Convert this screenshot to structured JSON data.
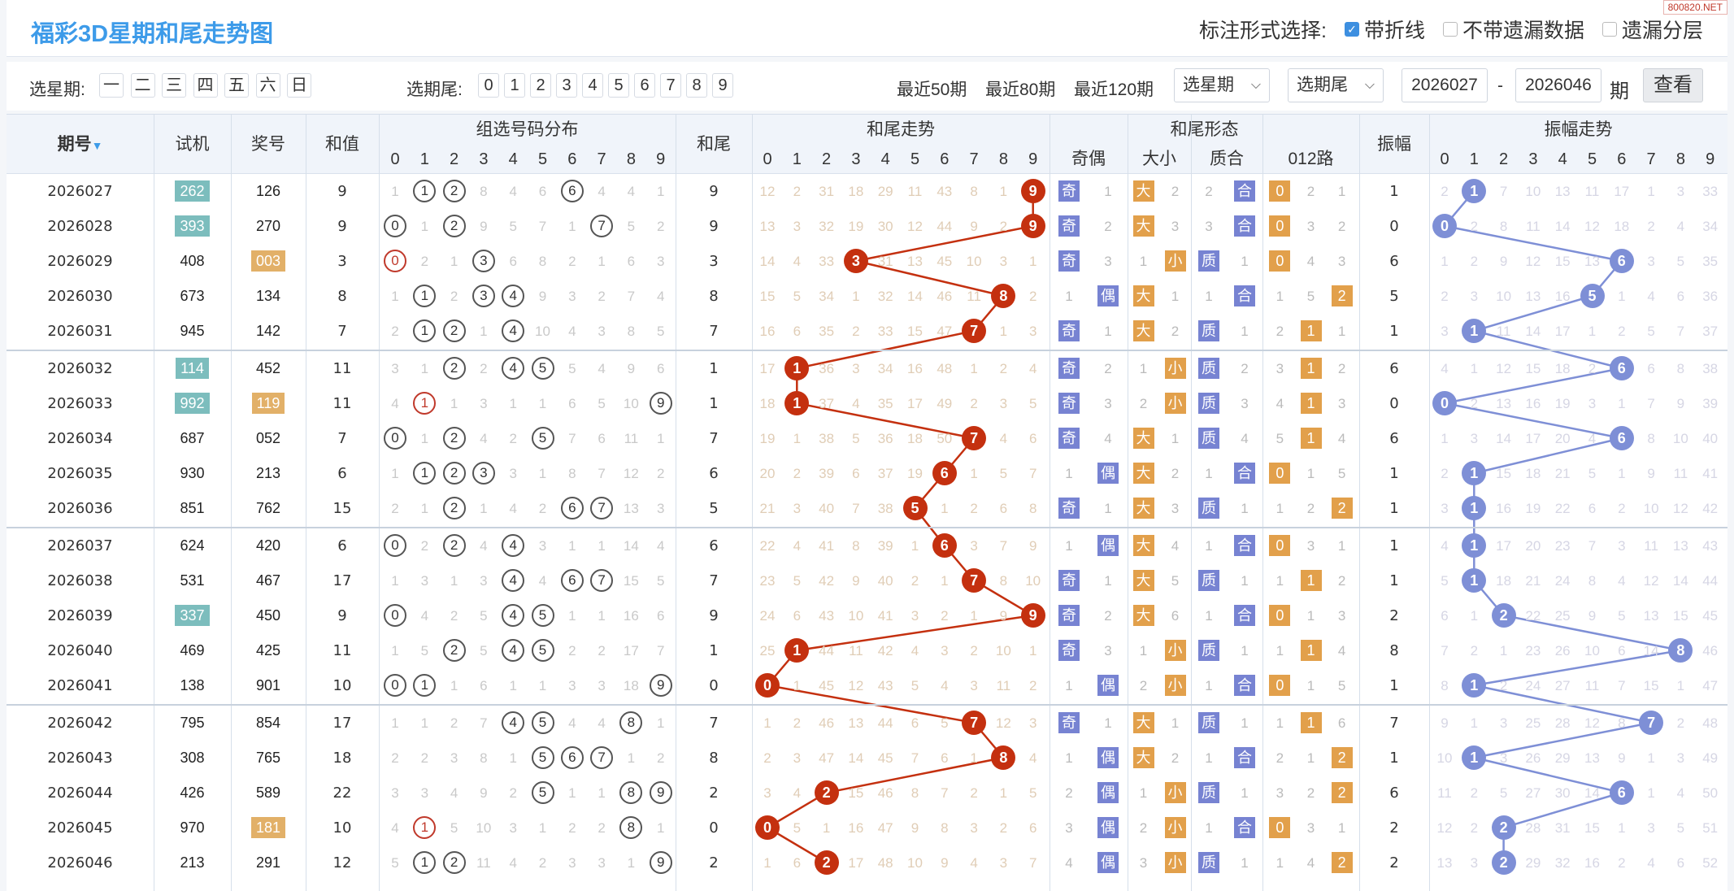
{
  "title": "福彩3D星期和尾走势图",
  "watermark": "800820.NET",
  "markopts": {
    "label": "标注形式选择:",
    "o1": "带折线",
    "o2": "不带遗漏数据",
    "o3": "遗漏分层"
  },
  "filter": {
    "week_label": "选星期:",
    "weekdays": [
      "一",
      "二",
      "三",
      "四",
      "五",
      "六",
      "日"
    ],
    "tail_label": "选期尾:",
    "tails": [
      "0",
      "1",
      "2",
      "3",
      "4",
      "5",
      "6",
      "7",
      "8",
      "9"
    ],
    "recent": [
      "最近50期",
      "最近80期",
      "最近120期"
    ],
    "sel_week": "选星期",
    "sel_tail": "选期尾",
    "from": "2026027",
    "dash": "-",
    "to": "2026046",
    "unit": "期",
    "search": "查看"
  },
  "headers": {
    "issue": "期号",
    "test": "试机",
    "prize": "奖号",
    "sum": "和值",
    "dist": "组选号码分布",
    "tail": "和尾",
    "trend": "和尾走势",
    "form": "和尾形态",
    "amp": "振幅",
    "amptrend": "振幅走势",
    "form_sub": [
      "奇偶",
      "大小",
      "质合",
      "012路"
    ],
    "digits": [
      "0",
      "1",
      "2",
      "3",
      "4",
      "5",
      "6",
      "7",
      "8",
      "9"
    ]
  },
  "colors": {
    "trend_ball": "#c4300f",
    "amp_ball": "#7e8fd6",
    "teal": "#7cbdbd",
    "gold": "#e2b068"
  },
  "rows": [
    {
      "issue": "2026027",
      "test": "262",
      "tb": "teal",
      "prize": "126",
      "pb": "",
      "sum": "9",
      "dist": [
        "1",
        "1",
        "2",
        "8",
        "4",
        "6",
        "6",
        "4",
        "4",
        "1"
      ],
      "hits": [
        1,
        2,
        6
      ],
      "hitx": [],
      "tail": "9",
      "trend": [
        "12",
        "2",
        "31",
        "18",
        "29",
        "11",
        "43",
        "8",
        "1",
        "9"
      ],
      "oe": [
        "奇",
        "1"
      ],
      "bs": [
        "大",
        "2"
      ],
      "pc": [
        "2",
        "合"
      ],
      "r012": [
        "0",
        "2",
        "1"
      ],
      "amp": "1",
      "at": [
        "2",
        "1",
        "7",
        "10",
        "13",
        "11",
        "17",
        "1",
        "3",
        "33"
      ]
    },
    {
      "issue": "2026028",
      "test": "393",
      "tb": "teal",
      "prize": "270",
      "pb": "",
      "sum": "9",
      "dist": [
        "0",
        "1",
        "2",
        "9",
        "5",
        "7",
        "1",
        "7",
        "5",
        "2"
      ],
      "hits": [
        0,
        2,
        7
      ],
      "hitx": [],
      "tail": "9",
      "trend": [
        "13",
        "3",
        "32",
        "19",
        "30",
        "12",
        "44",
        "9",
        "2",
        "9"
      ],
      "oe": [
        "奇",
        "2"
      ],
      "bs": [
        "大",
        "3"
      ],
      "pc": [
        "3",
        "合"
      ],
      "r012": [
        "0",
        "3",
        "2"
      ],
      "amp": "0",
      "at": [
        "0",
        "2",
        "8",
        "11",
        "14",
        "12",
        "18",
        "2",
        "4",
        "34"
      ]
    },
    {
      "issue": "2026029",
      "test": "408",
      "tb": "",
      "prize": "003",
      "pb": "gold",
      "sum": "3",
      "dist": [
        "0",
        "2",
        "1",
        "3",
        "6",
        "8",
        "2",
        "1",
        "6",
        "3"
      ],
      "hits": [
        3
      ],
      "hitx": [
        0
      ],
      "tail": "3",
      "trend": [
        "14",
        "4",
        "33",
        "3",
        "31",
        "13",
        "45",
        "10",
        "3",
        "1"
      ],
      "oe": [
        "奇",
        "3"
      ],
      "bs": [
        "1",
        "小"
      ],
      "pc": [
        "质",
        "1"
      ],
      "r012": [
        "0",
        "4",
        "3"
      ],
      "amp": "6",
      "at": [
        "1",
        "2",
        "9",
        "12",
        "15",
        "13",
        "6",
        "3",
        "5",
        "35"
      ]
    },
    {
      "issue": "2026030",
      "test": "673",
      "tb": "",
      "prize": "134",
      "pb": "",
      "sum": "8",
      "dist": [
        "1",
        "1",
        "2",
        "3",
        "4",
        "9",
        "3",
        "2",
        "7",
        "4"
      ],
      "hits": [
        1,
        3,
        4
      ],
      "hitx": [],
      "tail": "8",
      "trend": [
        "15",
        "5",
        "34",
        "1",
        "32",
        "14",
        "46",
        "11",
        "8",
        "2"
      ],
      "oe": [
        "1",
        "偶"
      ],
      "bs": [
        "大",
        "1"
      ],
      "pc": [
        "1",
        "合"
      ],
      "r012": [
        "1",
        "5",
        "2"
      ],
      "amp": "5",
      "at": [
        "2",
        "3",
        "10",
        "13",
        "16",
        "5",
        "1",
        "4",
        "6",
        "36"
      ]
    },
    {
      "issue": "2026031",
      "test": "945",
      "tb": "",
      "prize": "142",
      "pb": "",
      "sum": "7",
      "dist": [
        "2",
        "1",
        "2",
        "1",
        "4",
        "10",
        "4",
        "3",
        "8",
        "5"
      ],
      "hits": [
        1,
        2,
        4
      ],
      "hitx": [],
      "tail": "7",
      "trend": [
        "16",
        "6",
        "35",
        "2",
        "33",
        "15",
        "47",
        "7",
        "1",
        "3"
      ],
      "oe": [
        "奇",
        "1"
      ],
      "bs": [
        "大",
        "2"
      ],
      "pc": [
        "质",
        "1"
      ],
      "r012": [
        "2",
        "1",
        "1"
      ],
      "amp": "1",
      "at": [
        "3",
        "1",
        "11",
        "14",
        "17",
        "1",
        "2",
        "5",
        "7",
        "37"
      ]
    },
    {
      "issue": "2026032",
      "test": "114",
      "tb": "teal",
      "prize": "452",
      "pb": "",
      "sum": "11",
      "dist": [
        "3",
        "1",
        "2",
        "2",
        "4",
        "5",
        "5",
        "4",
        "9",
        "6"
      ],
      "hits": [
        2,
        4,
        5
      ],
      "hitx": [],
      "tail": "1",
      "trend": [
        "17",
        "1",
        "36",
        "3",
        "34",
        "16",
        "48",
        "1",
        "2",
        "4"
      ],
      "oe": [
        "奇",
        "2"
      ],
      "bs": [
        "1",
        "小"
      ],
      "pc": [
        "质",
        "2"
      ],
      "r012": [
        "3",
        "1",
        "2"
      ],
      "amp": "6",
      "at": [
        "4",
        "1",
        "12",
        "15",
        "18",
        "2",
        "6",
        "6",
        "8",
        "38"
      ]
    },
    {
      "issue": "2026033",
      "test": "992",
      "tb": "teal",
      "prize": "119",
      "pb": "gold",
      "sum": "11",
      "dist": [
        "4",
        "1",
        "1",
        "3",
        "1",
        "1",
        "6",
        "5",
        "10",
        "9"
      ],
      "hits": [
        9
      ],
      "hitx": [
        1
      ],
      "tail": "1",
      "trend": [
        "18",
        "1",
        "37",
        "4",
        "35",
        "17",
        "49",
        "2",
        "3",
        "5"
      ],
      "oe": [
        "奇",
        "3"
      ],
      "bs": [
        "2",
        "小"
      ],
      "pc": [
        "质",
        "3"
      ],
      "r012": [
        "4",
        "1",
        "3"
      ],
      "amp": "0",
      "at": [
        "0",
        "2",
        "13",
        "16",
        "19",
        "3",
        "1",
        "7",
        "9",
        "39"
      ]
    },
    {
      "issue": "2026034",
      "test": "687",
      "tb": "",
      "prize": "052",
      "pb": "",
      "sum": "7",
      "dist": [
        "0",
        "1",
        "2",
        "4",
        "2",
        "5",
        "7",
        "6",
        "11",
        "1"
      ],
      "hits": [
        0,
        2,
        5
      ],
      "hitx": [],
      "tail": "7",
      "trend": [
        "19",
        "1",
        "38",
        "5",
        "36",
        "18",
        "50",
        "7",
        "4",
        "6"
      ],
      "oe": [
        "奇",
        "4"
      ],
      "bs": [
        "大",
        "1"
      ],
      "pc": [
        "质",
        "4"
      ],
      "r012": [
        "5",
        "1",
        "4"
      ],
      "amp": "6",
      "at": [
        "1",
        "3",
        "14",
        "17",
        "20",
        "4",
        "6",
        "8",
        "10",
        "40"
      ]
    },
    {
      "issue": "2026035",
      "test": "930",
      "tb": "",
      "prize": "213",
      "pb": "",
      "sum": "6",
      "dist": [
        "1",
        "1",
        "2",
        "3",
        "3",
        "1",
        "8",
        "7",
        "12",
        "2"
      ],
      "hits": [
        1,
        2,
        3
      ],
      "hitx": [],
      "tail": "6",
      "trend": [
        "20",
        "2",
        "39",
        "6",
        "37",
        "19",
        "6",
        "1",
        "5",
        "7"
      ],
      "oe": [
        "1",
        "偶"
      ],
      "bs": [
        "大",
        "2"
      ],
      "pc": [
        "1",
        "合"
      ],
      "r012": [
        "0",
        "1",
        "5"
      ],
      "amp": "1",
      "at": [
        "2",
        "1",
        "15",
        "18",
        "21",
        "5",
        "1",
        "9",
        "11",
        "41"
      ]
    },
    {
      "issue": "2026036",
      "test": "851",
      "tb": "",
      "prize": "762",
      "pb": "",
      "sum": "15",
      "dist": [
        "2",
        "1",
        "2",
        "1",
        "4",
        "2",
        "6",
        "7",
        "13",
        "3"
      ],
      "hits": [
        2,
        6,
        7
      ],
      "hitx": [],
      "tail": "5",
      "trend": [
        "21",
        "3",
        "40",
        "7",
        "38",
        "5",
        "1",
        "2",
        "6",
        "8"
      ],
      "oe": [
        "奇",
        "1"
      ],
      "bs": [
        "大",
        "3"
      ],
      "pc": [
        "质",
        "1"
      ],
      "r012": [
        "1",
        "2",
        "2"
      ],
      "amp": "1",
      "at": [
        "3",
        "1",
        "16",
        "19",
        "22",
        "6",
        "2",
        "10",
        "12",
        "42"
      ]
    },
    {
      "issue": "2026037",
      "test": "624",
      "tb": "",
      "prize": "420",
      "pb": "",
      "sum": "6",
      "dist": [
        "0",
        "2",
        "2",
        "4",
        "4",
        "3",
        "1",
        "1",
        "14",
        "4"
      ],
      "hits": [
        0,
        2,
        4
      ],
      "hitx": [],
      "tail": "6",
      "trend": [
        "22",
        "4",
        "41",
        "8",
        "39",
        "1",
        "6",
        "3",
        "7",
        "9"
      ],
      "oe": [
        "1",
        "偶"
      ],
      "bs": [
        "大",
        "4"
      ],
      "pc": [
        "1",
        "合"
      ],
      "r012": [
        "0",
        "3",
        "1"
      ],
      "amp": "1",
      "at": [
        "4",
        "1",
        "17",
        "20",
        "23",
        "7",
        "3",
        "11",
        "13",
        "43"
      ]
    },
    {
      "issue": "2026038",
      "test": "531",
      "tb": "",
      "prize": "467",
      "pb": "",
      "sum": "17",
      "dist": [
        "1",
        "3",
        "1",
        "3",
        "4",
        "4",
        "6",
        "7",
        "15",
        "5"
      ],
      "hits": [
        4,
        6,
        7
      ],
      "hitx": [],
      "tail": "7",
      "trend": [
        "23",
        "5",
        "42",
        "9",
        "40",
        "2",
        "1",
        "7",
        "8",
        "10"
      ],
      "oe": [
        "奇",
        "1"
      ],
      "bs": [
        "大",
        "5"
      ],
      "pc": [
        "质",
        "1"
      ],
      "r012": [
        "1",
        "1",
        "2"
      ],
      "amp": "1",
      "at": [
        "5",
        "1",
        "18",
        "21",
        "24",
        "8",
        "4",
        "12",
        "14",
        "44"
      ]
    },
    {
      "issue": "2026039",
      "test": "337",
      "tb": "teal",
      "prize": "450",
      "pb": "",
      "sum": "9",
      "dist": [
        "0",
        "4",
        "2",
        "5",
        "4",
        "5",
        "1",
        "1",
        "16",
        "6"
      ],
      "hits": [
        0,
        4,
        5
      ],
      "hitx": [],
      "tail": "9",
      "trend": [
        "24",
        "6",
        "43",
        "10",
        "41",
        "3",
        "2",
        "1",
        "9",
        "9"
      ],
      "oe": [
        "奇",
        "2"
      ],
      "bs": [
        "大",
        "6"
      ],
      "pc": [
        "1",
        "合"
      ],
      "r012": [
        "0",
        "1",
        "3"
      ],
      "amp": "2",
      "at": [
        "6",
        "1",
        "2",
        "22",
        "25",
        "9",
        "5",
        "13",
        "15",
        "45"
      ]
    },
    {
      "issue": "2026040",
      "test": "469",
      "tb": "",
      "prize": "425",
      "pb": "",
      "sum": "11",
      "dist": [
        "1",
        "5",
        "2",
        "5",
        "4",
        "5",
        "2",
        "2",
        "17",
        "7"
      ],
      "hits": [
        2,
        4,
        5
      ],
      "hitx": [],
      "tail": "1",
      "trend": [
        "25",
        "1",
        "44",
        "11",
        "42",
        "4",
        "3",
        "2",
        "10",
        "1"
      ],
      "oe": [
        "奇",
        "3"
      ],
      "bs": [
        "1",
        "小"
      ],
      "pc": [
        "质",
        "1"
      ],
      "r012": [
        "1",
        "1",
        "4"
      ],
      "amp": "8",
      "at": [
        "7",
        "2",
        "1",
        "23",
        "26",
        "10",
        "6",
        "14",
        "8",
        "46"
      ]
    },
    {
      "issue": "2026041",
      "test": "138",
      "tb": "",
      "prize": "901",
      "pb": "",
      "sum": "10",
      "dist": [
        "0",
        "1",
        "1",
        "6",
        "1",
        "1",
        "3",
        "3",
        "18",
        "9"
      ],
      "hits": [
        0,
        1,
        9
      ],
      "hitx": [],
      "tail": "0",
      "trend": [
        "0",
        "1",
        "45",
        "12",
        "43",
        "5",
        "4",
        "3",
        "11",
        "2"
      ],
      "oe": [
        "1",
        "偶"
      ],
      "bs": [
        "2",
        "小"
      ],
      "pc": [
        "1",
        "合"
      ],
      "r012": [
        "0",
        "1",
        "5"
      ],
      "amp": "1",
      "at": [
        "8",
        "1",
        "2",
        "24",
        "27",
        "11",
        "7",
        "15",
        "1",
        "47"
      ]
    },
    {
      "issue": "2026042",
      "test": "795",
      "tb": "",
      "prize": "854",
      "pb": "",
      "sum": "17",
      "dist": [
        "1",
        "1",
        "2",
        "7",
        "4",
        "5",
        "4",
        "4",
        "8",
        "1"
      ],
      "hits": [
        4,
        5,
        8
      ],
      "hitx": [],
      "tail": "7",
      "trend": [
        "1",
        "2",
        "46",
        "13",
        "44",
        "6",
        "5",
        "7",
        "12",
        "3"
      ],
      "oe": [
        "奇",
        "1"
      ],
      "bs": [
        "大",
        "1"
      ],
      "pc": [
        "质",
        "1"
      ],
      "r012": [
        "1",
        "1",
        "6"
      ],
      "amp": "7",
      "at": [
        "9",
        "1",
        "3",
        "25",
        "28",
        "12",
        "8",
        "7",
        "2",
        "48"
      ]
    },
    {
      "issue": "2026043",
      "test": "308",
      "tb": "",
      "prize": "765",
      "pb": "",
      "sum": "18",
      "dist": [
        "2",
        "2",
        "3",
        "8",
        "1",
        "5",
        "6",
        "7",
        "1",
        "2"
      ],
      "hits": [
        5,
        6,
        7
      ],
      "hitx": [],
      "tail": "8",
      "trend": [
        "2",
        "3",
        "47",
        "14",
        "45",
        "7",
        "6",
        "1",
        "8",
        "4"
      ],
      "oe": [
        "1",
        "偶"
      ],
      "bs": [
        "大",
        "2"
      ],
      "pc": [
        "1",
        "合"
      ],
      "r012": [
        "2",
        "1",
        "2"
      ],
      "amp": "1",
      "at": [
        "10",
        "1",
        "3",
        "26",
        "29",
        "13",
        "9",
        "1",
        "3",
        "49"
      ]
    },
    {
      "issue": "2026044",
      "test": "426",
      "tb": "",
      "prize": "589",
      "pb": "",
      "sum": "22",
      "dist": [
        "3",
        "3",
        "4",
        "9",
        "2",
        "5",
        "1",
        "1",
        "8",
        "9"
      ],
      "hits": [
        5,
        8,
        9
      ],
      "hitx": [],
      "tail": "2",
      "trend": [
        "3",
        "4",
        "2",
        "15",
        "46",
        "8",
        "7",
        "2",
        "1",
        "5"
      ],
      "oe": [
        "2",
        "偶"
      ],
      "bs": [
        "1",
        "小"
      ],
      "pc": [
        "质",
        "1"
      ],
      "r012": [
        "3",
        "2",
        "2"
      ],
      "amp": "6",
      "at": [
        "11",
        "2",
        "5",
        "27",
        "30",
        "14",
        "6",
        "1",
        "4",
        "50"
      ]
    },
    {
      "issue": "2026045",
      "test": "970",
      "tb": "",
      "prize": "181",
      "pb": "gold",
      "sum": "10",
      "dist": [
        "4",
        "1",
        "5",
        "10",
        "3",
        "1",
        "2",
        "2",
        "8",
        "1"
      ],
      "hits": [
        8
      ],
      "hitx": [
        1
      ],
      "tail": "0",
      "trend": [
        "0",
        "5",
        "1",
        "16",
        "47",
        "9",
        "8",
        "3",
        "2",
        "6"
      ],
      "oe": [
        "3",
        "偶"
      ],
      "bs": [
        "2",
        "小"
      ],
      "pc": [
        "1",
        "合"
      ],
      "r012": [
        "0",
        "3",
        "1"
      ],
      "amp": "2",
      "at": [
        "12",
        "2",
        "2",
        "28",
        "31",
        "15",
        "1",
        "3",
        "5",
        "51"
      ]
    },
    {
      "issue": "2026046",
      "test": "213",
      "tb": "",
      "prize": "291",
      "pb": "",
      "sum": "12",
      "dist": [
        "5",
        "1",
        "2",
        "11",
        "4",
        "2",
        "3",
        "3",
        "1",
        "9"
      ],
      "hits": [
        1,
        2,
        9
      ],
      "hitx": [],
      "tail": "2",
      "trend": [
        "1",
        "6",
        "2",
        "17",
        "48",
        "10",
        "9",
        "4",
        "3",
        "7"
      ],
      "oe": [
        "4",
        "偶"
      ],
      "bs": [
        "3",
        "小"
      ],
      "pc": [
        "质",
        "1"
      ],
      "r012": [
        "1",
        "4",
        "2"
      ],
      "amp": "2",
      "at": [
        "13",
        "3",
        "2",
        "29",
        "32",
        "16",
        "2",
        "4",
        "6",
        "52"
      ]
    }
  ]
}
